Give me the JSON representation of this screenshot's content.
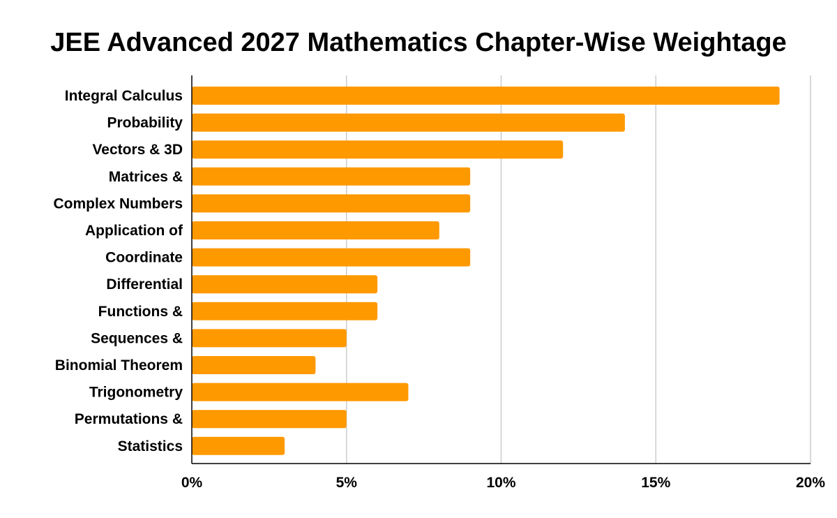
{
  "chart_data": {
    "type": "bar",
    "orientation": "horizontal",
    "title": "JEE Advanced 2027 Mathematics Chapter-Wise Weightage",
    "xlabel": "",
    "ylabel": "",
    "categories": [
      "Integral Calculus",
      "Probability",
      "Vectors & 3D",
      "Matrices &",
      "Complex Numbers",
      "Application of",
      "Coordinate",
      "Differential",
      "Functions &",
      "Sequences &",
      "Binomial Theorem",
      "Trigonometry",
      "Permutations &",
      "Statistics"
    ],
    "values": [
      19,
      14,
      12,
      9,
      9,
      8,
      9,
      6,
      6,
      5,
      4,
      7,
      5,
      3
    ],
    "xlim": [
      0,
      20
    ],
    "x_ticks": [
      0,
      5,
      10,
      15,
      20
    ],
    "x_tick_labels": [
      "0%",
      "5%",
      "10%",
      "15%",
      "20%"
    ],
    "grid": "vertical",
    "legend": "none",
    "bar_color": "#ff9900",
    "grid_color": "#cccccc",
    "axis_color": "#000000"
  }
}
